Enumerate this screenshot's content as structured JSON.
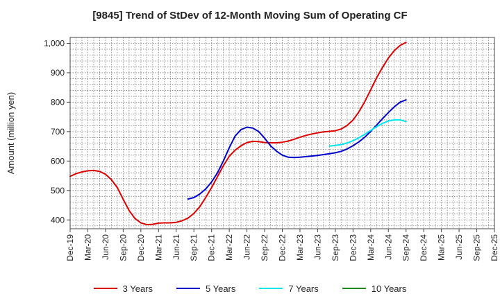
{
  "chart_data": {
    "type": "line",
    "title": "[9845]  Trend of StDev of 12-Month Moving Sum of Operating CF",
    "xlabel": "",
    "ylabel": "Amount (million yen)",
    "ylim": [
      370,
      1020
    ],
    "yticks": [
      400,
      500,
      600,
      700,
      800,
      900,
      1000
    ],
    "ytick_labels": [
      "400",
      "500",
      "600",
      "700",
      "800",
      "900",
      "1,000"
    ],
    "xlim": [
      0,
      72
    ],
    "xticks": [
      0,
      3,
      6,
      9,
      12,
      15,
      18,
      21,
      24,
      27,
      30,
      33,
      36,
      39,
      42,
      45,
      48,
      51,
      54,
      57,
      60,
      63,
      66,
      69,
      72
    ],
    "xtick_labels": [
      "Dec-19",
      "Mar-20",
      "Jun-20",
      "Sep-20",
      "Dec-20",
      "Mar-21",
      "Jun-21",
      "Sep-21",
      "Dec-21",
      "Mar-22",
      "Jun-22",
      "Sep-22",
      "Dec-22",
      "Mar-23",
      "Jun-23",
      "Sep-23",
      "Dec-23",
      "Mar-24",
      "Jun-24",
      "Sep-24",
      "Dec-24",
      "Mar-25",
      "Jun-25",
      "Sep-25",
      "Dec-25"
    ],
    "grid": true,
    "legend_position": "bottom",
    "series": [
      {
        "name": "3 Years",
        "color": "#dd0000",
        "x": [
          0,
          1,
          2,
          3,
          4,
          5,
          6,
          7,
          8,
          9,
          10,
          11,
          12,
          13,
          14,
          15,
          16,
          17,
          18,
          19,
          20,
          21,
          22,
          23,
          24,
          25,
          26,
          27,
          28,
          29,
          30,
          31,
          32,
          33,
          34,
          35,
          36,
          37,
          38,
          39,
          40,
          41,
          42,
          43,
          44,
          45,
          46,
          47,
          48,
          49,
          50,
          51,
          52,
          53,
          54,
          55,
          56,
          57
        ],
        "y": [
          548,
          557,
          563,
          567,
          568,
          565,
          555,
          537,
          510,
          470,
          432,
          405,
          390,
          384,
          385,
          389,
          390,
          390,
          392,
          397,
          406,
          422,
          445,
          476,
          510,
          547,
          584,
          616,
          637,
          652,
          663,
          667,
          666,
          663,
          662,
          662,
          664,
          668,
          674,
          681,
          687,
          692,
          696,
          699,
          701,
          703,
          709,
          721,
          739,
          767,
          802,
          842,
          883,
          918,
          950,
          975,
          993,
          1003
        ]
      },
      {
        "name": "5 Years",
        "color": "#0000cc",
        "x": [
          20,
          21,
          22,
          23,
          24,
          25,
          26,
          27,
          28,
          29,
          30,
          31,
          32,
          33,
          34,
          35,
          36,
          37,
          38,
          39,
          40,
          41,
          42,
          43,
          44,
          45,
          46,
          47,
          48,
          49,
          50,
          51,
          52,
          53,
          54,
          55,
          56,
          57
        ],
        "y": [
          471,
          476,
          488,
          505,
          529,
          560,
          600,
          645,
          685,
          707,
          715,
          712,
          700,
          678,
          652,
          634,
          620,
          613,
          612,
          613,
          615,
          617,
          619,
          622,
          625,
          628,
          633,
          641,
          652,
          665,
          681,
          701,
          722,
          744,
          765,
          784,
          800,
          808
        ]
      },
      {
        "name": "7 Years",
        "color": "#00e5ee",
        "x": [
          44,
          45,
          46,
          47,
          48,
          49,
          50,
          51,
          52,
          53,
          54,
          55,
          56,
          57
        ],
        "y": [
          651,
          653,
          656,
          661,
          669,
          679,
          691,
          704,
          717,
          728,
          736,
          740,
          740,
          734
        ]
      },
      {
        "name": "10 Years",
        "color": "#1a8a1a",
        "x": [],
        "y": []
      }
    ]
  }
}
